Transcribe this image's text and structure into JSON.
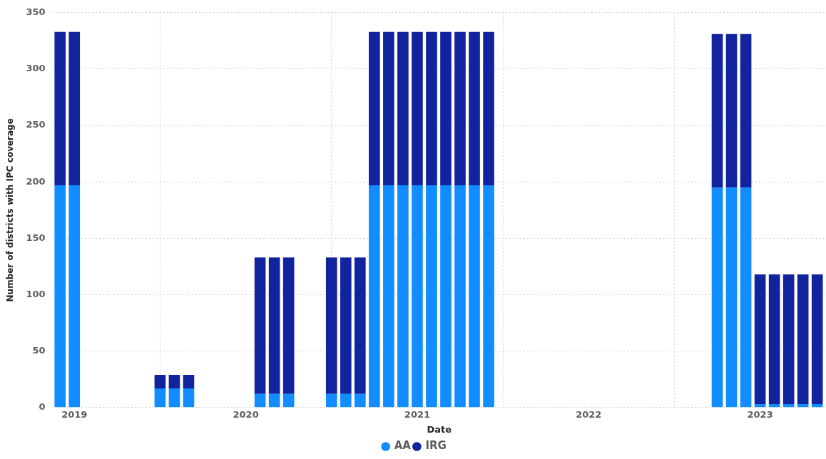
{
  "chart_data": {
    "type": "bar",
    "stacked": true,
    "xlabel": "Date",
    "ylabel": "Number of districts with IPC coverage",
    "x": [
      "2018-12",
      "2019-01",
      "2019-07",
      "2019-08",
      "2019-09",
      "2020-02",
      "2020-03",
      "2020-04",
      "2020-07",
      "2020-08",
      "2020-09",
      "2020-10",
      "2020-11",
      "2020-12",
      "2021-01",
      "2021-02",
      "2021-03",
      "2021-04",
      "2021-05",
      "2021-06",
      "2022-10",
      "2022-11",
      "2022-12",
      "2023-01",
      "2023-02",
      "2023-03",
      "2023-04",
      "2023-05"
    ],
    "series": [
      {
        "name": "AA",
        "color": "#118dff",
        "values": [
          197,
          197,
          17,
          17,
          17,
          12,
          12,
          12,
          12,
          12,
          12,
          197,
          197,
          197,
          197,
          197,
          197,
          197,
          197,
          197,
          195,
          195,
          195,
          3,
          3,
          3,
          3,
          3
        ]
      },
      {
        "name": "IRG",
        "color": "#12239e",
        "values": [
          136,
          136,
          12,
          12,
          12,
          121,
          121,
          121,
          121,
          121,
          121,
          136,
          136,
          136,
          136,
          136,
          136,
          136,
          136,
          136,
          136,
          136,
          136,
          115,
          115,
          115,
          115,
          115
        ]
      }
    ],
    "xlim": [
      "2018-11-15",
      "2023-05-20"
    ],
    "xticks": [
      "2019",
      "2020",
      "2021",
      "2022",
      "2023"
    ],
    "ylim": [
      0,
      350
    ],
    "yticks": [
      0,
      50,
      100,
      150,
      200,
      250,
      300,
      350
    ],
    "grid": true,
    "legend": "bottom"
  }
}
